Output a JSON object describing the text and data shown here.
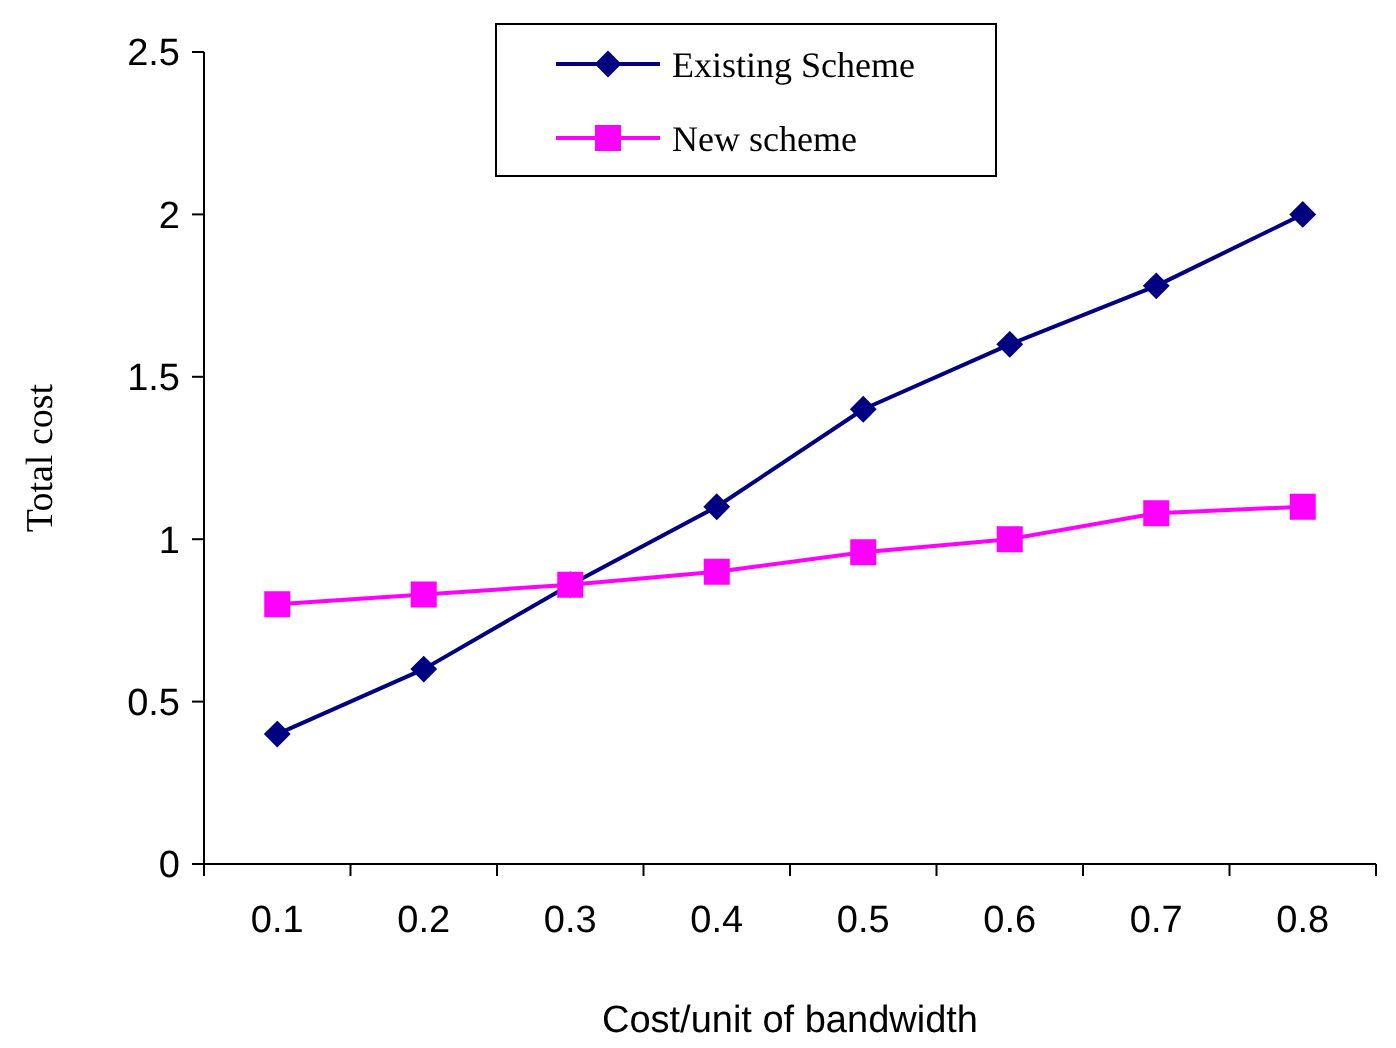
{
  "chart_data": {
    "type": "line",
    "xlabel": "Cost/unit of bandwidth",
    "ylabel": "Total cost",
    "categories": [
      "0.1",
      "0.2",
      "0.3",
      "0.4",
      "0.5",
      "0.6",
      "0.7",
      "0.8"
    ],
    "series": [
      {
        "name": "Existing Scheme",
        "color": "#000080",
        "marker": "diamond",
        "values": [
          0.4,
          0.6,
          0.86,
          1.1,
          1.4,
          1.6,
          1.78,
          2.0
        ]
      },
      {
        "name": "New scheme",
        "color": "#ff00ff",
        "marker": "square",
        "values": [
          0.8,
          0.83,
          0.86,
          0.9,
          0.96,
          1.0,
          1.08,
          1.1
        ]
      }
    ],
    "ylim": [
      0,
      2.5
    ],
    "yticks": [
      0,
      0.5,
      1,
      1.5,
      2,
      2.5
    ],
    "grid": false,
    "legend": "top",
    "line_style": "solid"
  }
}
